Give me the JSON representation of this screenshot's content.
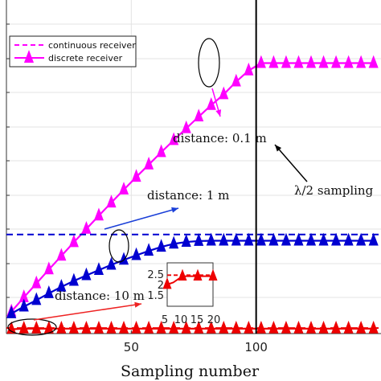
{
  "chart_data": [
    {
      "type": "line",
      "title": "",
      "xlabel": "Sampling number",
      "ylabel": "",
      "xlim": [
        0,
        150
      ],
      "x_ticks": [
        50,
        100
      ],
      "grid": true,
      "legend": {
        "placement": "top-left",
        "entries": [
          {
            "label": "continuous receiver",
            "style": "dashed",
            "color": "#ff00ff"
          },
          {
            "label": "discrete receiver",
            "style": "solid-triangle",
            "color": "#ff00ff"
          }
        ]
      },
      "series": [
        {
          "group": "distance: 0.1 m",
          "color": "#ff00ff",
          "continuous_level": 1.0,
          "x": [
            2,
            7,
            12,
            17,
            22,
            27,
            32,
            37,
            42,
            47,
            52,
            57,
            62,
            67,
            72,
            77,
            82,
            87,
            92,
            97,
            102,
            107,
            112,
            117,
            122,
            127,
            132,
            137,
            142,
            147
          ],
          "values": [
            0.071,
            0.117,
            0.162,
            0.207,
            0.251,
            0.295,
            0.338,
            0.381,
            0.423,
            0.465,
            0.506,
            0.546,
            0.586,
            0.625,
            0.663,
            0.701,
            0.738,
            0.773,
            0.814,
            0.85,
            0.874,
            0.874,
            0.874,
            0.874,
            0.874,
            0.874,
            0.874,
            0.874,
            0.874,
            0.874
          ]
        },
        {
          "group": "distance: 1 m",
          "color": "#0000d0",
          "continuous_level": 0.32,
          "x": [
            2,
            7,
            12,
            17,
            22,
            27,
            32,
            37,
            42,
            47,
            52,
            57,
            62,
            67,
            72,
            77,
            82,
            87,
            92,
            97,
            102,
            107,
            112,
            117,
            122,
            127,
            132,
            137,
            142,
            147
          ],
          "values": [
            0.065,
            0.087,
            0.108,
            0.13,
            0.151,
            0.17,
            0.188,
            0.205,
            0.222,
            0.238,
            0.253,
            0.267,
            0.28,
            0.29,
            0.296,
            0.299,
            0.3,
            0.3,
            0.3,
            0.3,
            0.3,
            0.3,
            0.3,
            0.3,
            0.3,
            0.3,
            0.3,
            0.3,
            0.3,
            0.3
          ]
        },
        {
          "group": "distance: 10 m",
          "color": "#ee0000",
          "continuous_level": 0.018,
          "x": [
            2,
            7,
            12,
            17,
            22,
            27,
            32,
            37,
            42,
            47,
            52,
            57,
            62,
            67,
            72,
            77,
            82,
            87,
            92,
            97,
            102,
            107,
            112,
            117,
            122,
            127,
            132,
            137,
            142,
            147
          ],
          "values": [
            0.014,
            0.016,
            0.016,
            0.016,
            0.016,
            0.016,
            0.016,
            0.016,
            0.016,
            0.016,
            0.016,
            0.016,
            0.016,
            0.016,
            0.016,
            0.016,
            0.016,
            0.016,
            0.016,
            0.016,
            0.016,
            0.016,
            0.016,
            0.016,
            0.016,
            0.016,
            0.016,
            0.016,
            0.016,
            0.016
          ]
        }
      ],
      "annotations": {
        "label_01": "distance:  0.1 m",
        "label_1": "distance:  1 m",
        "label_10": "distance:  10 m",
        "vline_label": "λ/2 sampling",
        "vline_x": 100
      }
    },
    {
      "type": "line",
      "inset": true,
      "xlim": [
        5,
        20
      ],
      "ylim": [
        1.5,
        2.5
      ],
      "x_tick_labels": [
        "5",
        "10",
        "15",
        "20"
      ],
      "y_tick_labels": [
        "2.5",
        "2",
        "1.5"
      ],
      "continuous_level": 2.45,
      "x": [
        5,
        7,
        10,
        12.5,
        15,
        17.5,
        20
      ],
      "values": [
        2.0,
        2.1,
        2.4,
        2.4,
        2.4,
        2.4,
        2.4
      ],
      "marker_x": [
        5,
        10,
        15,
        20
      ],
      "color": "#ee0000"
    }
  ]
}
